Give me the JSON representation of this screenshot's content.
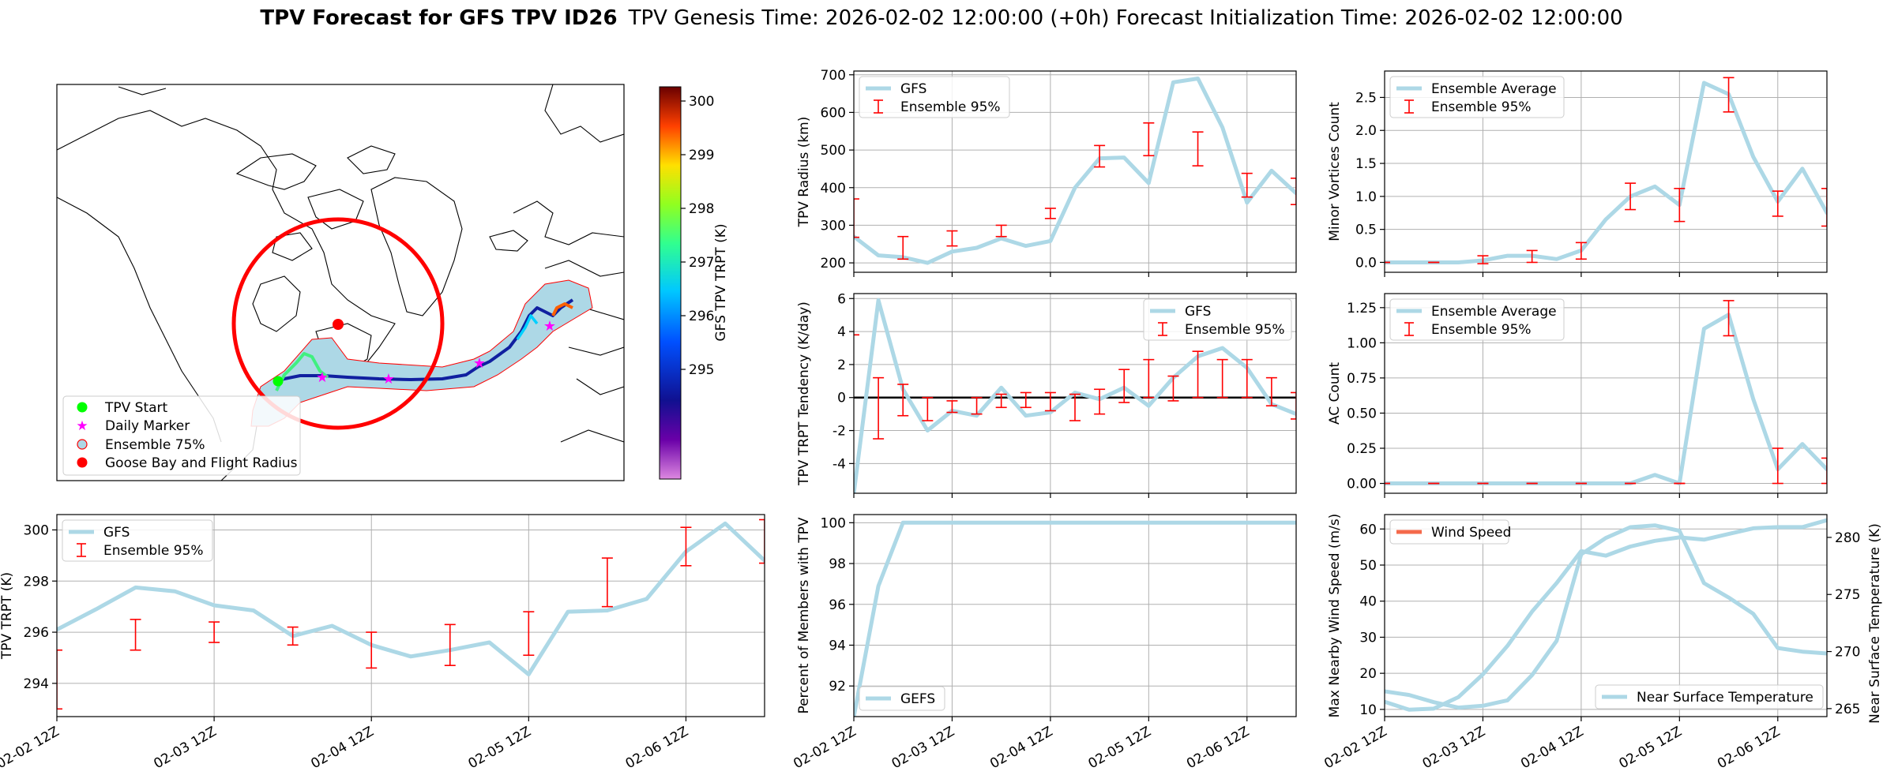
{
  "figure": {
    "title_bold": "TPV Forecast for GFS TPV ID26",
    "title_rest": "TPV Genesis Time: 2026-02-02 12:00:00 (+0h)   Forecast Initialization Time: 2026-02-02 12:00:00"
  },
  "colors": {
    "gfs": "#add8e6",
    "ensemble": "#ff0000",
    "wind": "#f4694b",
    "temperature": "#4169e1",
    "shade": "#add8e6"
  },
  "map": {
    "colorbar_label": "GFS TPV TRPT (K)",
    "colorbar_ticks": [
      "300",
      "299",
      "298",
      "297",
      "296",
      "295"
    ],
    "legend": [
      "TPV Start",
      "Daily Marker",
      "Ensemble 75%",
      "Goose Bay and Flight Radius"
    ]
  },
  "chart_data": [
    {
      "id": "radius",
      "type": "line",
      "ylabel": "TPV Radius (km)",
      "ylim": [
        175,
        710
      ],
      "yticks": [
        200,
        300,
        400,
        500,
        600,
        700
      ],
      "x": [
        0,
        0.25,
        0.5,
        0.75,
        1,
        1.25,
        1.5,
        1.75,
        2,
        2.25,
        2.5,
        2.75,
        3,
        3.25,
        3.5,
        3.75,
        4,
        4.25,
        4.5
      ],
      "series": [
        {
          "name": "GFS",
          "values": [
            270,
            220,
            215,
            200,
            230,
            240,
            265,
            245,
            258,
            400,
            478,
            480,
            412,
            680,
            690,
            560,
            360,
            445,
            385
          ]
        },
        {
          "name": "Ensemble 95%",
          "kind": "errorbar",
          "points": [
            [
              0,
              268,
              370
            ],
            [
              0.5,
              210,
              270
            ],
            [
              1,
              245,
              285
            ],
            [
              1.5,
              270,
              300
            ],
            [
              2,
              318,
              345
            ],
            [
              2.5,
              455,
              512
            ],
            [
              3,
              485,
              572
            ],
            [
              3.5,
              458,
              548
            ],
            [
              4,
              375,
              438
            ],
            [
              4.5,
              355,
              425
            ]
          ]
        }
      ],
      "legend": [
        "GFS",
        "Ensemble 95%"
      ]
    },
    {
      "id": "minor",
      "type": "line",
      "ylabel": "Minor Vortices Count",
      "ylim": [
        -0.15,
        2.9
      ],
      "yticks": [
        0.0,
        0.5,
        1.0,
        1.5,
        2.0,
        2.5
      ],
      "x": [
        0,
        0.25,
        0.5,
        0.75,
        1,
        1.25,
        1.5,
        1.75,
        2,
        2.25,
        2.5,
        2.75,
        3,
        3.25,
        3.5,
        3.75,
        4,
        4.25,
        4.5
      ],
      "series": [
        {
          "name": "Ensemble Average",
          "values": [
            0,
            0,
            0,
            0,
            0.03,
            0.1,
            0.1,
            0.05,
            0.18,
            0.65,
            1.0,
            1.15,
            0.87,
            2.72,
            2.55,
            1.6,
            0.92,
            1.42,
            0.75
          ]
        },
        {
          "name": "Ensemble 95%",
          "kind": "errorbar",
          "points": [
            [
              0,
              0,
              0
            ],
            [
              0.5,
              0,
              0
            ],
            [
              1,
              -0.02,
              0.1
            ],
            [
              1.5,
              0,
              0.18
            ],
            [
              2,
              0.05,
              0.3
            ],
            [
              2.5,
              0.8,
              1.2
            ],
            [
              3,
              0.62,
              1.12
            ],
            [
              3.5,
              2.28,
              2.8
            ],
            [
              4,
              0.7,
              1.08
            ],
            [
              4.5,
              0.55,
              1.12
            ]
          ]
        }
      ],
      "legend": [
        "Ensemble Average",
        "Ensemble 95%"
      ]
    },
    {
      "id": "tendency",
      "type": "line",
      "ylabel": "TPV TRPT Tendency (K/day)",
      "ylim": [
        -5.8,
        6.3
      ],
      "yticks": [
        -4,
        -2,
        0,
        2,
        4,
        6
      ],
      "x": [
        0,
        0.25,
        0.5,
        0.75,
        1,
        1.25,
        1.5,
        1.75,
        2,
        2.25,
        2.5,
        2.75,
        3,
        3.25,
        3.5,
        3.75,
        4,
        4.25,
        4.5
      ],
      "series": [
        {
          "name": "GFS",
          "values": [
            -5.8,
            5.9,
            0.5,
            -2.0,
            -0.8,
            -1.1,
            0.6,
            -1.1,
            -0.9,
            0.3,
            -0.1,
            0.6,
            -0.5,
            1.2,
            2.5,
            3.0,
            1.8,
            -0.4,
            -1.0
          ]
        },
        {
          "name": "Ensemble 95%",
          "kind": "errorbar",
          "points": [
            [
              0,
              3.8,
              3.8
            ],
            [
              0.25,
              -2.5,
              1.2
            ],
            [
              0.5,
              -1.1,
              0.8
            ],
            [
              0.75,
              -1.4,
              0
            ],
            [
              1,
              -0.9,
              -0.2
            ],
            [
              1.25,
              -1.0,
              0
            ],
            [
              1.5,
              -0.6,
              0.2
            ],
            [
              1.75,
              -0.6,
              0.3
            ],
            [
              2,
              -0.8,
              0.3
            ],
            [
              2.25,
              -1.4,
              0.2
            ],
            [
              2.5,
              -1.0,
              0.5
            ],
            [
              2.75,
              -0.3,
              1.7
            ],
            [
              3,
              0,
              2.3
            ],
            [
              3.25,
              -0.2,
              1.3
            ],
            [
              3.5,
              0,
              2.8
            ],
            [
              3.75,
              0,
              2.3
            ],
            [
              4,
              0,
              2.3
            ],
            [
              4.25,
              -0.5,
              1.2
            ],
            [
              4.5,
              -1.3,
              0.3
            ]
          ]
        }
      ],
      "legend": [
        "GFS",
        "Ensemble 95%"
      ]
    },
    {
      "id": "ac",
      "type": "line",
      "ylabel": "AC Count",
      "ylim": [
        -0.07,
        1.35
      ],
      "yticks": [
        0.0,
        0.25,
        0.5,
        0.75,
        1.0,
        1.25
      ],
      "x": [
        0,
        0.25,
        0.5,
        0.75,
        1,
        1.25,
        1.5,
        1.75,
        2,
        2.25,
        2.5,
        2.75,
        3,
        3.25,
        3.5,
        3.75,
        4,
        4.25,
        4.5
      ],
      "series": [
        {
          "name": "Ensemble Average",
          "values": [
            0,
            0,
            0,
            0,
            0,
            0,
            0,
            0,
            0,
            0,
            0,
            0.06,
            0,
            1.1,
            1.2,
            0.6,
            0.1,
            0.28,
            0.1
          ]
        },
        {
          "name": "Ensemble 95%",
          "kind": "errorbar",
          "points": [
            [
              0,
              0,
              0
            ],
            [
              0.5,
              0,
              0
            ],
            [
              1,
              0,
              0
            ],
            [
              1.5,
              0,
              0
            ],
            [
              2,
              0,
              0
            ],
            [
              2.5,
              0,
              0
            ],
            [
              3,
              0,
              0
            ],
            [
              3.5,
              1.05,
              1.3
            ],
            [
              4,
              0,
              0.25
            ],
            [
              4.5,
              0,
              0.18
            ]
          ]
        }
      ],
      "legend": [
        "Ensemble Average",
        "Ensemble 95%"
      ]
    },
    {
      "id": "trpt",
      "type": "line",
      "ylabel": "TPV TRPT (K)",
      "ylim": [
        292.7,
        300.6
      ],
      "yticks": [
        294,
        296,
        298,
        300
      ],
      "xticks": [
        "02-02 12Z",
        "02-03 12Z",
        "02-04 12Z",
        "02-05 12Z",
        "02-06 12Z"
      ],
      "x": [
        0,
        0.25,
        0.5,
        0.75,
        1,
        1.25,
        1.5,
        1.75,
        2,
        2.25,
        2.5,
        2.75,
        3,
        3.25,
        3.5,
        3.75,
        4,
        4.25,
        4.5
      ],
      "series": [
        {
          "name": "GFS",
          "values": [
            296.1,
            296.9,
            297.75,
            297.6,
            297.05,
            296.85,
            295.85,
            296.25,
            295.5,
            295.05,
            295.3,
            295.6,
            294.35,
            296.8,
            296.85,
            297.3,
            299.15,
            300.25,
            298.8
          ]
        },
        {
          "name": "Ensemble 95%",
          "kind": "errorbar",
          "points": [
            [
              0,
              293.0,
              295.3
            ],
            [
              0.5,
              295.3,
              296.5
            ],
            [
              1,
              295.6,
              296.4
            ],
            [
              1.5,
              295.5,
              296.2
            ],
            [
              2,
              294.6,
              296.0
            ],
            [
              2.5,
              294.7,
              296.3
            ],
            [
              3,
              295.1,
              296.8
            ],
            [
              3.5,
              297.0,
              298.9
            ],
            [
              4,
              298.6,
              300.1
            ],
            [
              4.5,
              298.7,
              300.4
            ]
          ]
        }
      ],
      "legend": [
        "GFS",
        "Ensemble 95%"
      ]
    },
    {
      "id": "percent",
      "type": "line",
      "ylabel": "Percent of Members with TPV",
      "ylim": [
        90.5,
        100.4
      ],
      "yticks": [
        92,
        94,
        96,
        98,
        100
      ],
      "xticks": [
        "02-02 12Z",
        "02-03 12Z",
        "02-04 12Z",
        "02-05 12Z",
        "02-06 12Z"
      ],
      "x": [
        0,
        0.25,
        0.5,
        0.75,
        1,
        1.25,
        1.5,
        1.75,
        2,
        2.25,
        2.5,
        2.75,
        3,
        3.25,
        3.5,
        3.75,
        4,
        4.25,
        4.5
      ],
      "series": [
        {
          "name": "GEFS",
          "values": [
            90.5,
            96.9,
            100,
            100,
            100,
            100,
            100,
            100,
            100,
            100,
            100,
            100,
            100,
            100,
            100,
            100,
            100,
            100,
            100
          ]
        }
      ],
      "legend": [
        "GEFS"
      ]
    },
    {
      "id": "wind",
      "type": "line",
      "ylabel": "Max Nearby Wind Speed (m/s)",
      "ylabel_right": "Near Surface Temperature (K)",
      "ylim": [
        8,
        64
      ],
      "yticks": [
        10,
        20,
        30,
        40,
        50,
        60
      ],
      "ylim_right": [
        264.3,
        282.0
      ],
      "yticks_right": [
        265,
        270,
        275,
        280
      ],
      "xticks": [
        "02-02 12Z",
        "02-03 12Z",
        "02-04 12Z",
        "02-05 12Z",
        "02-06 12Z"
      ],
      "x": [
        0,
        0.25,
        0.5,
        0.75,
        1,
        1.25,
        1.5,
        1.75,
        2,
        2.25,
        2.5,
        2.75,
        3,
        3.25,
        3.5,
        3.75,
        4,
        4.25,
        4.5
      ],
      "series": [
        {
          "name": "Wind Speed",
          "axis": "left",
          "values": [
            15,
            14,
            12,
            10.5,
            11,
            12.5,
            19.5,
            29,
            53,
            57.5,
            60.5,
            61,
            59.5,
            45,
            41,
            36.5,
            27,
            26,
            25.5
          ]
        },
        {
          "name": "Near Surface Temperature",
          "axis": "right",
          "values": [
            265.6,
            264.9,
            265.0,
            266.0,
            268.0,
            270.5,
            273.5,
            276.0,
            278.8,
            278.4,
            279.2,
            279.7,
            280.0,
            279.8,
            280.3,
            280.8,
            280.9,
            280.9,
            281.5
          ]
        }
      ],
      "legend": [
        "Wind Speed",
        "Near Surface Temperature"
      ]
    }
  ]
}
